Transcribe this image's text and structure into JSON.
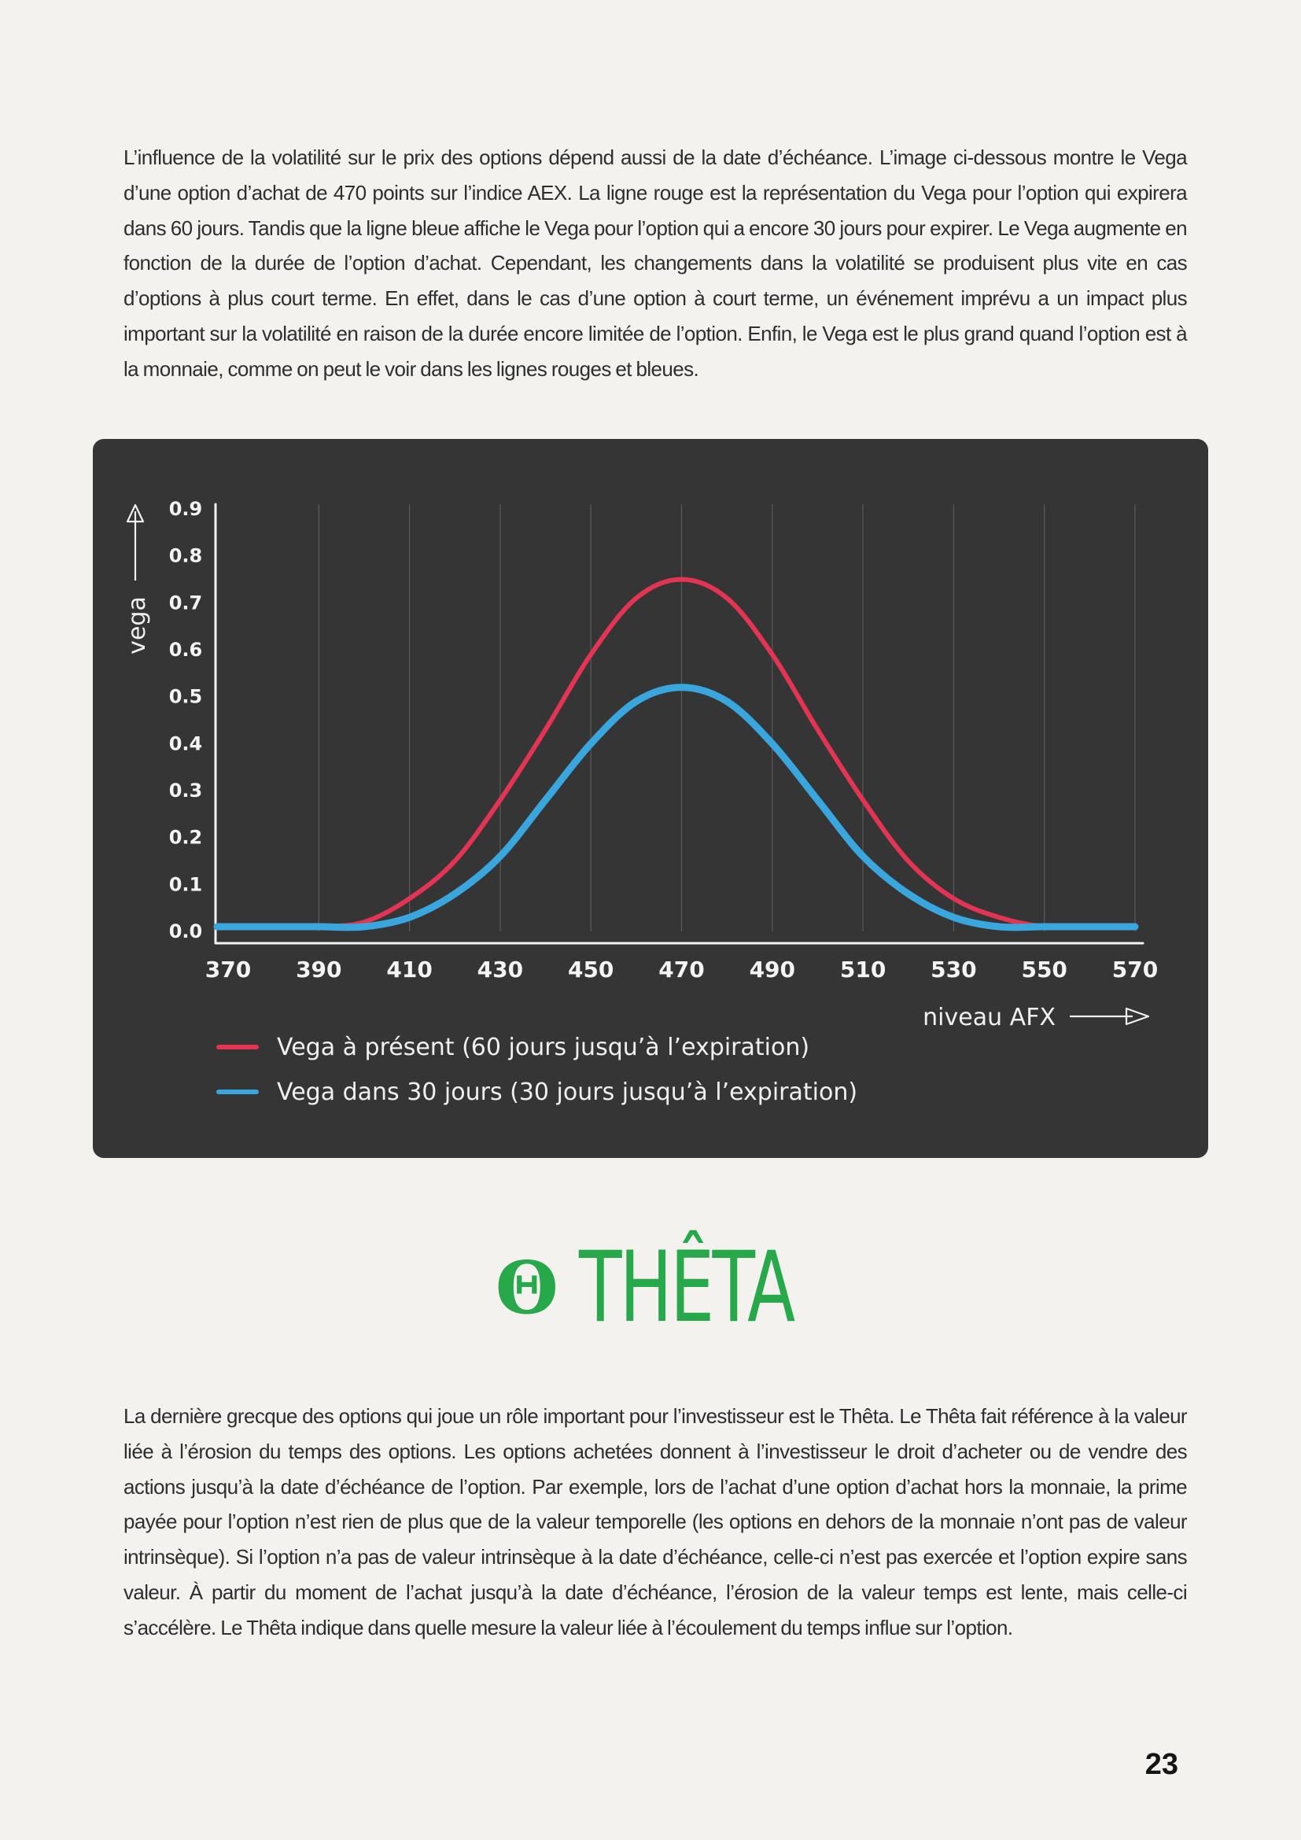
{
  "intro_paragraph": "L’influence de la volatilité sur le prix des options dépend aussi de la date d’échéance. L’image ci-dessous montre le Vega d’une option d’achat de 470 points sur l’indice AEX. La ligne rouge est la représentation du Vega pour l’option qui expirera dans 60 jours. Tandis que la ligne bleue affiche le Vega pour l’option qui a encore 30 jours pour expirer. Le Vega augmente en fonction de la durée de l’option d’achat. Cependant, les changements dans la volatilité se produisent plus vite en cas d’options à plus court terme. En effet, dans le cas d’une option à court terme, un événement imprévu a un impact plus important sur la volatilité en raison de la durée encore limitée de l’option. Enfin, le Vega est le plus grand quand l’option est à la monnaie, comme on peut le voir dans les lignes rouges et bleues.",
  "chart_data": {
    "type": "line",
    "xlabel": "niveau AFX",
    "ylabel": "vega",
    "xlim": [
      370,
      570
    ],
    "ylim": [
      0,
      0.9
    ],
    "x_ticks": [
      "370",
      "390",
      "410",
      "430",
      "450",
      "470",
      "490",
      "510",
      "530",
      "550",
      "570"
    ],
    "y_ticks": [
      "0.0",
      "0.1",
      "0.2",
      "0.3",
      "0.4",
      "0.5",
      "0.6",
      "0.7",
      "0.8",
      "0.9"
    ],
    "grid": "vertical",
    "legend_position": "bottom-left",
    "x": [
      370,
      380,
      390,
      400,
      410,
      420,
      430,
      440,
      450,
      460,
      470,
      480,
      490,
      500,
      510,
      520,
      530,
      540,
      550,
      560,
      570
    ],
    "series": [
      {
        "name": "Vega à présent (60 jours jusqu’à l’expiration)",
        "color": "#e33553",
        "values": [
          0.01,
          0.01,
          0.01,
          0.02,
          0.07,
          0.15,
          0.28,
          0.43,
          0.59,
          0.71,
          0.75,
          0.71,
          0.59,
          0.43,
          0.28,
          0.15,
          0.07,
          0.03,
          0.01,
          0.01,
          0.01
        ]
      },
      {
        "name": "Vega dans 30 jours (30 jours jusqu’à l’expiration)",
        "color": "#3aa6de",
        "values": [
          0.01,
          0.01,
          0.01,
          0.01,
          0.03,
          0.08,
          0.16,
          0.28,
          0.4,
          0.49,
          0.52,
          0.49,
          0.4,
          0.28,
          0.16,
          0.08,
          0.03,
          0.01,
          0.01,
          0.01,
          0.01
        ]
      }
    ]
  },
  "section": {
    "symbol": "Θ",
    "title": "THÊTA",
    "color": "#27a84a"
  },
  "theta_paragraph": "La dernière grecque des options qui joue un rôle important pour l’investisseur est le Thêta. Le Thêta fait référence à la valeur liée à l’érosion du temps des options. Les options achetées donnent à l’investisseur le droit d’acheter ou de vendre des actions jusqu’à la date d’échéance de l’option. Par exemple, lors de l’achat d’une option d’achat hors la monnaie, la prime payée pour l’option n’est rien de plus que de la valeur temporelle (les options en dehors de la monnaie n’ont pas de valeur intrinsèque). Si l’option n’a pas de valeur intrinsèque à la date d’échéance, celle-ci n’est pas exercée et l’option expire sans valeur. À partir du moment de l’achat jusqu’à la date d’échéance, l’érosion de la valeur temps est lente, mais celle-ci s’accélère. Le Thêta indique dans quelle mesure la valeur liée à l’écoulement du temps influe sur l’option.",
  "page_number": "23"
}
